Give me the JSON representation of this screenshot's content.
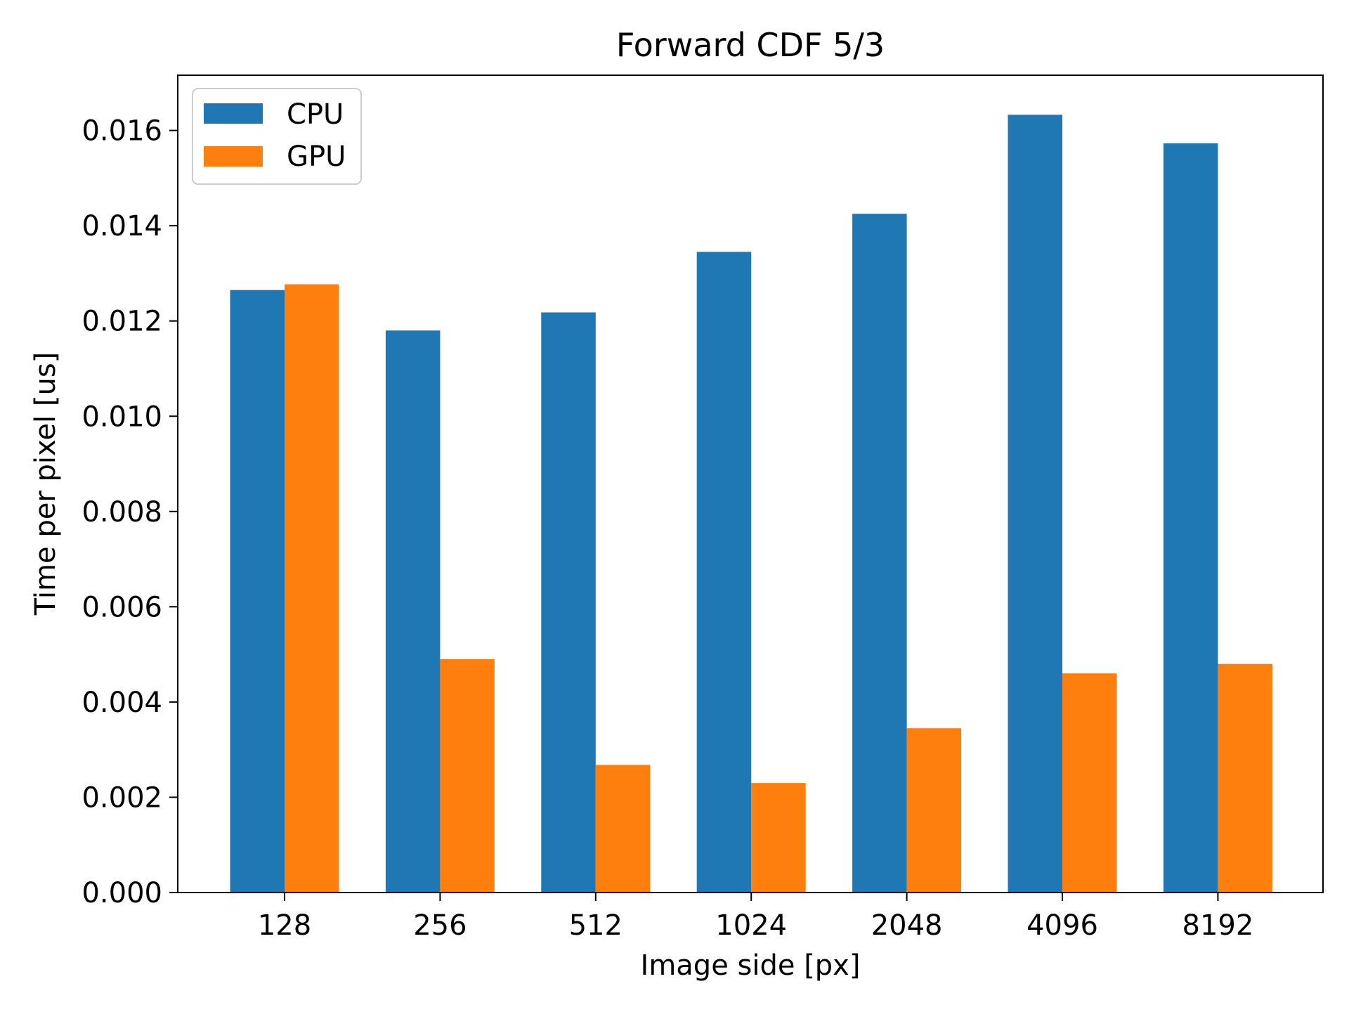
{
  "chart_data": {
    "type": "bar",
    "title": "Forward CDF 5/3",
    "xlabel": "Image side [px]",
    "ylabel": "Time per pixel [us]",
    "categories": [
      "128",
      "256",
      "512",
      "1024",
      "2048",
      "4096",
      "8192"
    ],
    "series": [
      {
        "name": "CPU",
        "color": "#1f77b4",
        "values": [
          0.01265,
          0.0118,
          0.01218,
          0.01345,
          0.01425,
          0.01633,
          0.01573
        ]
      },
      {
        "name": "GPU",
        "color": "#ff7f0e",
        "values": [
          0.01277,
          0.0049,
          0.00268,
          0.0023,
          0.00345,
          0.0046,
          0.0048
        ]
      }
    ],
    "ylim": [
      0,
      0.01716
    ],
    "yticks": [
      0,
      0.002,
      0.004,
      0.006,
      0.008,
      0.01,
      0.012,
      0.014,
      0.016
    ],
    "ytick_labels": [
      "0.000",
      "0.002",
      "0.004",
      "0.006",
      "0.008",
      "0.010",
      "0.012",
      "0.014",
      "0.016"
    ],
    "legend": "upper-left",
    "grid": false
  }
}
